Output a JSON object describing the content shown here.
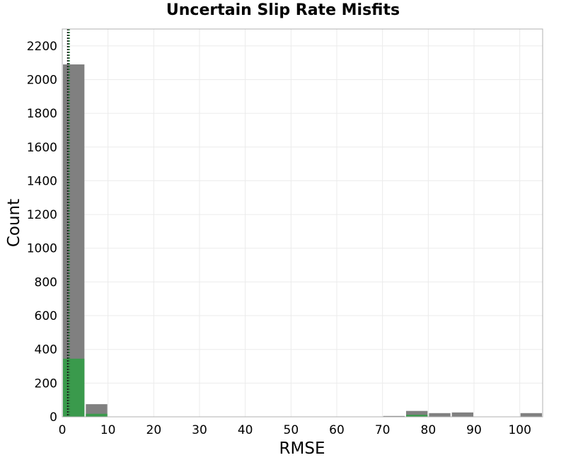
{
  "chart_data": {
    "type": "bar",
    "title": "Uncertain Slip Rate Misfits",
    "xlabel": "RMSE",
    "ylabel": "Count",
    "xlim": [
      0,
      105
    ],
    "ylim": [
      0,
      2300
    ],
    "x_ticks": [
      "0",
      "10",
      "20",
      "30",
      "40",
      "50",
      "60",
      "70",
      "80",
      "90",
      "100"
    ],
    "y_ticks": [
      "0",
      "200",
      "400",
      "600",
      "800",
      "1000",
      "1200",
      "1400",
      "1600",
      "1800",
      "2000",
      "2200"
    ],
    "grid": true,
    "bin_width": 5,
    "series": [
      {
        "color": "#808080",
        "bins": [
          {
            "x0": 0,
            "x1": 5,
            "count": 2090
          },
          {
            "x0": 5,
            "x1": 10,
            "count": 75
          },
          {
            "x0": 70,
            "x1": 75,
            "count": 5
          },
          {
            "x0": 75,
            "x1": 80,
            "count": 35
          },
          {
            "x0": 80,
            "x1": 85,
            "count": 22
          },
          {
            "x0": 85,
            "x1": 90,
            "count": 26
          },
          {
            "x0": 100,
            "x1": 105,
            "count": 22
          }
        ]
      },
      {
        "color": "#3a9a4c",
        "bins": [
          {
            "x0": 0,
            "x1": 5,
            "count": 345
          },
          {
            "x0": 5,
            "x1": 10,
            "count": 18
          },
          {
            "x0": 75,
            "x1": 80,
            "count": 12
          }
        ]
      }
    ],
    "reference_lines": [
      {
        "x": 1.2,
        "color": "#1a1a1a",
        "style": "dotted"
      },
      {
        "x": 1.5,
        "color": "#2a7a3a",
        "style": "dotted"
      }
    ]
  }
}
